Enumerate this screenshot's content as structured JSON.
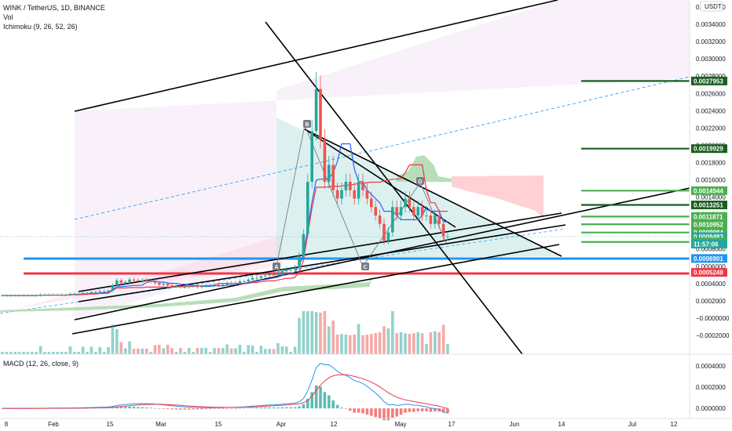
{
  "header": {
    "symbol": "WINK / TetherUS, 1D, BINANCE",
    "vol": "Vol",
    "ichimoku": "Ichimoku (9, 26, 52, 26)",
    "currency": "USDT"
  },
  "macd_legend": "MACD (12, 26, close, 9)",
  "countdown": "11:57:06",
  "colors": {
    "up": "#26a69a",
    "down": "#ef5350",
    "blue_line": "#2962ff",
    "red_line": "#f23645",
    "price_tag": "#26a69a",
    "dark_green": "#1b5e20",
    "light_green": "#4caf50",
    "blue_level": "#2196f3"
  },
  "chart_data": [
    {
      "type": "candlestick",
      "name": "price",
      "x_labels": [
        "8",
        "Feb",
        "15",
        "Mar",
        "15",
        "Apr",
        "12",
        "May",
        "17",
        "Jun",
        "14",
        "Jul",
        "12"
      ],
      "y_ticks": [
        "0.0036000",
        "0.0034000",
        "0.0032000",
        "0.0030000",
        "0.0028000",
        "0.0026000",
        "0.0024000",
        "0.0022000",
        "0.0020000",
        "0.0018000",
        "0.0016000",
        "0.0014000",
        "0.0012000",
        "0.0010000",
        "0.0008000",
        "0.0006000",
        "0.0004000",
        "0.0002000",
        "−0.0000000",
        "−0.0002000"
      ],
      "ylim": [
        -0.00025,
        0.0037
      ],
      "close": [
        0.00025,
        0.00025,
        0.00025,
        0.00025,
        0.00025,
        0.00025,
        0.00025,
        0.00025,
        0.00025,
        0.00026,
        0.00026,
        0.00026,
        0.00026,
        0.00026,
        0.00026,
        0.00026,
        0.00027,
        0.00027,
        0.00027,
        0.00028,
        0.00028,
        0.00029,
        0.00029,
        0.0003,
        0.0003,
        0.00031,
        0.00037,
        0.00043,
        0.0004,
        0.00041,
        0.00044,
        0.00043,
        0.00042,
        0.00043,
        0.00042,
        0.00042,
        0.0004,
        0.00038,
        0.00039,
        0.00037,
        0.00036,
        0.00036,
        0.00035,
        0.00035,
        0.00036,
        0.00036,
        0.00035,
        0.00036,
        0.00037,
        0.00037,
        0.00038,
        0.00037,
        0.00038,
        0.0004,
        0.00039,
        0.0004,
        0.00042,
        0.00042,
        0.00044,
        0.00046,
        0.00046,
        0.00048,
        0.00049,
        0.0005,
        0.00049,
        0.00052,
        0.00054,
        0.00056,
        0.00056,
        0.00058,
        0.00072,
        0.00098,
        0.0016,
        0.0022,
        0.0027,
        0.0021,
        0.0016,
        0.0018,
        0.0015,
        0.0014,
        0.0015,
        0.0016,
        0.0015,
        0.0014,
        0.0016,
        0.0015,
        0.0014,
        0.0013,
        0.0012,
        0.0011,
        0.0009,
        0.001,
        0.0013,
        0.0012,
        0.0013,
        0.0014,
        0.0013,
        0.0012,
        0.0013,
        0.0012,
        0.0012,
        0.0011,
        0.0012,
        0.0011,
        0.00095,
        0.00095
      ],
      "price_levels": [
        {
          "label": "0.0027953",
          "value": 0.0027953,
          "color": "#1b5e20"
        },
        {
          "label": "0.0019929",
          "value": 0.0019929,
          "color": "#1b5e20"
        },
        {
          "label": "0.0014944",
          "value": 0.0014944,
          "color": "#4caf50"
        },
        {
          "label": "0.0013251",
          "value": 0.0013251,
          "color": "#1b5e20"
        },
        {
          "label": "0.0011871",
          "value": 0.0011871,
          "color": "#4caf50"
        },
        {
          "label": "0.0010952",
          "value": 0.0010952,
          "color": "#4caf50"
        },
        {
          "label": "0.0009984",
          "value": 0.0009984,
          "color": "#4caf50"
        },
        {
          "label": "0.0009483",
          "value": 0.0009483,
          "color": "#26a69a"
        },
        {
          "label": "0.0008860",
          "value": 0.000886,
          "color": "#4caf50"
        },
        {
          "label": "0.0006901",
          "value": 0.0006901,
          "color": "#2196f3"
        },
        {
          "label": "0.0005248",
          "value": 0.0005248,
          "color": "#f23645"
        }
      ],
      "pattern_points": [
        "A",
        "B",
        "C",
        "D"
      ]
    },
    {
      "type": "histogram",
      "name": "MACD",
      "y_ticks": [
        "0.0004000",
        "0.0002000",
        "0.0000000"
      ],
      "ylim": [
        -8e-05,
        0.00048
      ]
    }
  ]
}
